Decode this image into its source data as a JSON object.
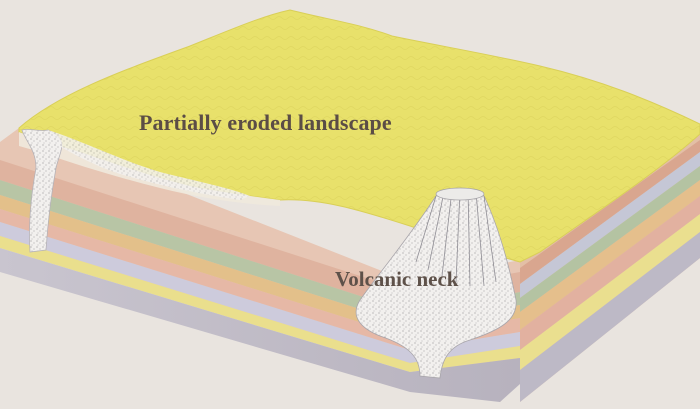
{
  "diagram": {
    "labels": {
      "landscape": "Partially eroded landscape",
      "neck": "Volcanic neck"
    },
    "colors": {
      "background": "#e9e4df",
      "landscape_surface": "#e8e06a",
      "label_text": "#5b4d46",
      "strata_pink": "#e2b7a3",
      "strata_tan": "#d7bd86",
      "strata_sage": "#b7c6a5",
      "strata_lavender": "#c9c7d8",
      "strata_yellow": "#eadf8d",
      "intrusion_speckle": "#f1efed"
    }
  }
}
